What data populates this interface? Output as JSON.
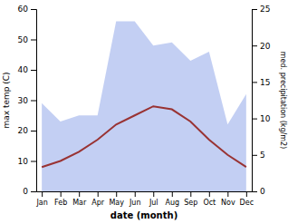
{
  "chart_data": {
    "type": "line",
    "xlabel": "date (month)",
    "ylabel": "max temp (C)",
    "y2label": "med. precipitation (kg/m2)",
    "categories": [
      "Jan",
      "Feb",
      "Mar",
      "Apr",
      "May",
      "Jun",
      "Jul",
      "Aug",
      "Sep",
      "Oct",
      "Nov",
      "Dec"
    ],
    "series": [
      {
        "type": "area",
        "color": "#aabbee",
        "values": [
          29,
          23,
          25,
          25,
          56,
          56,
          48,
          49,
          43,
          46,
          22,
          32
        ]
      },
      {
        "type": "line",
        "color": "#993333",
        "values": [
          8,
          10,
          13,
          17,
          22,
          25,
          28,
          27,
          23,
          17,
          12,
          8
        ]
      }
    ],
    "ylim": [
      0,
      60
    ],
    "yticks": [
      0,
      10,
      20,
      30,
      40,
      50,
      60
    ],
    "y2lim": [
      0,
      25
    ],
    "y2ticks": [
      0,
      5,
      10,
      15,
      20,
      25
    ],
    "grid": false
  }
}
